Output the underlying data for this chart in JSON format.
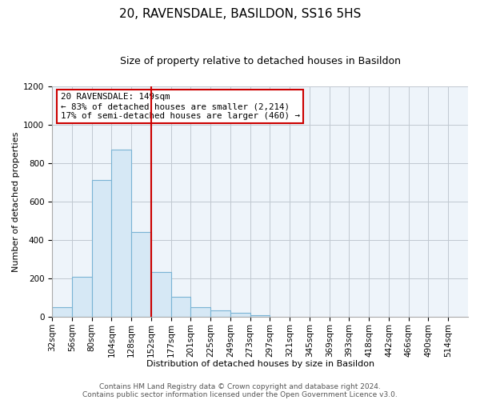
{
  "title": "20, RAVENSDALE, BASILDON, SS16 5HS",
  "subtitle": "Size of property relative to detached houses in Basildon",
  "xlabel": "Distribution of detached houses by size in Basildon",
  "ylabel": "Number of detached properties",
  "footer_line1": "Contains HM Land Registry data © Crown copyright and database right 2024.",
  "footer_line2": "Contains public sector information licensed under the Open Government Licence v3.0.",
  "bins": [
    "32sqm",
    "56sqm",
    "80sqm",
    "104sqm",
    "128sqm",
    "152sqm",
    "177sqm",
    "201sqm",
    "225sqm",
    "249sqm",
    "273sqm",
    "297sqm",
    "321sqm",
    "345sqm",
    "369sqm",
    "393sqm",
    "418sqm",
    "442sqm",
    "466sqm",
    "490sqm",
    "514sqm"
  ],
  "values": [
    50,
    210,
    710,
    870,
    440,
    235,
    105,
    50,
    35,
    20,
    10,
    0,
    0,
    0,
    0,
    0,
    0,
    0,
    0,
    0,
    0
  ],
  "bar_color": "#d6e8f5",
  "bar_edge_color": "#7ab3d4",
  "plot_bg_color": "#eef4fa",
  "vline_color": "#cc0000",
  "vline_index": 5,
  "annotation_title": "20 RAVENSDALE: 149sqm",
  "annotation_line1": "← 83% of detached houses are smaller (2,214)",
  "annotation_line2": "17% of semi-detached houses are larger (460) →",
  "annotation_box_facecolor": "white",
  "annotation_box_edgecolor": "#cc0000",
  "ylim": [
    0,
    1200
  ],
  "yticks": [
    0,
    200,
    400,
    600,
    800,
    1000,
    1200
  ],
  "grid_color": "#c0c8d0",
  "title_fontsize": 11,
  "subtitle_fontsize": 9,
  "axis_label_fontsize": 8,
  "tick_fontsize": 7.5,
  "footer_fontsize": 6.5
}
